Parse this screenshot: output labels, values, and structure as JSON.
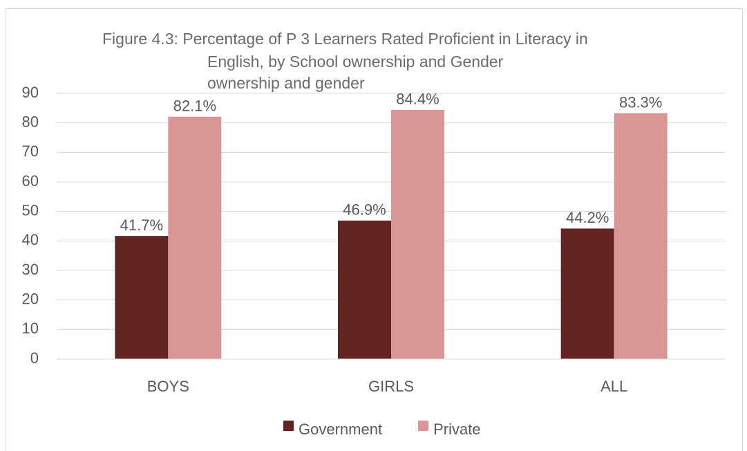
{
  "chart_data": {
    "type": "bar",
    "title": [
      "Figure 4.3:  Percentage of P 3 Learners Rated Proficient in Literacy in",
      "English, by School ownership and Gender",
      "ownership and gender"
    ],
    "categories": [
      "BOYS",
      "GIRLS",
      "ALL"
    ],
    "series": [
      {
        "name": "Government",
        "color": "#632523",
        "values": [
          41.7,
          46.9,
          44.2
        ],
        "value_labels": [
          "41.7%",
          "46.9%",
          "44.2%"
        ]
      },
      {
        "name": "Private",
        "color": "#d99694",
        "values": [
          82.1,
          84.4,
          83.3
        ],
        "value_labels": [
          "82.1%",
          "84.4%",
          "83.3%"
        ]
      }
    ],
    "ylim": [
      0,
      90
    ],
    "yticks": [
      0,
      10,
      20,
      30,
      40,
      50,
      60,
      70,
      80,
      90
    ],
    "grid": true,
    "legend": "bottom"
  }
}
